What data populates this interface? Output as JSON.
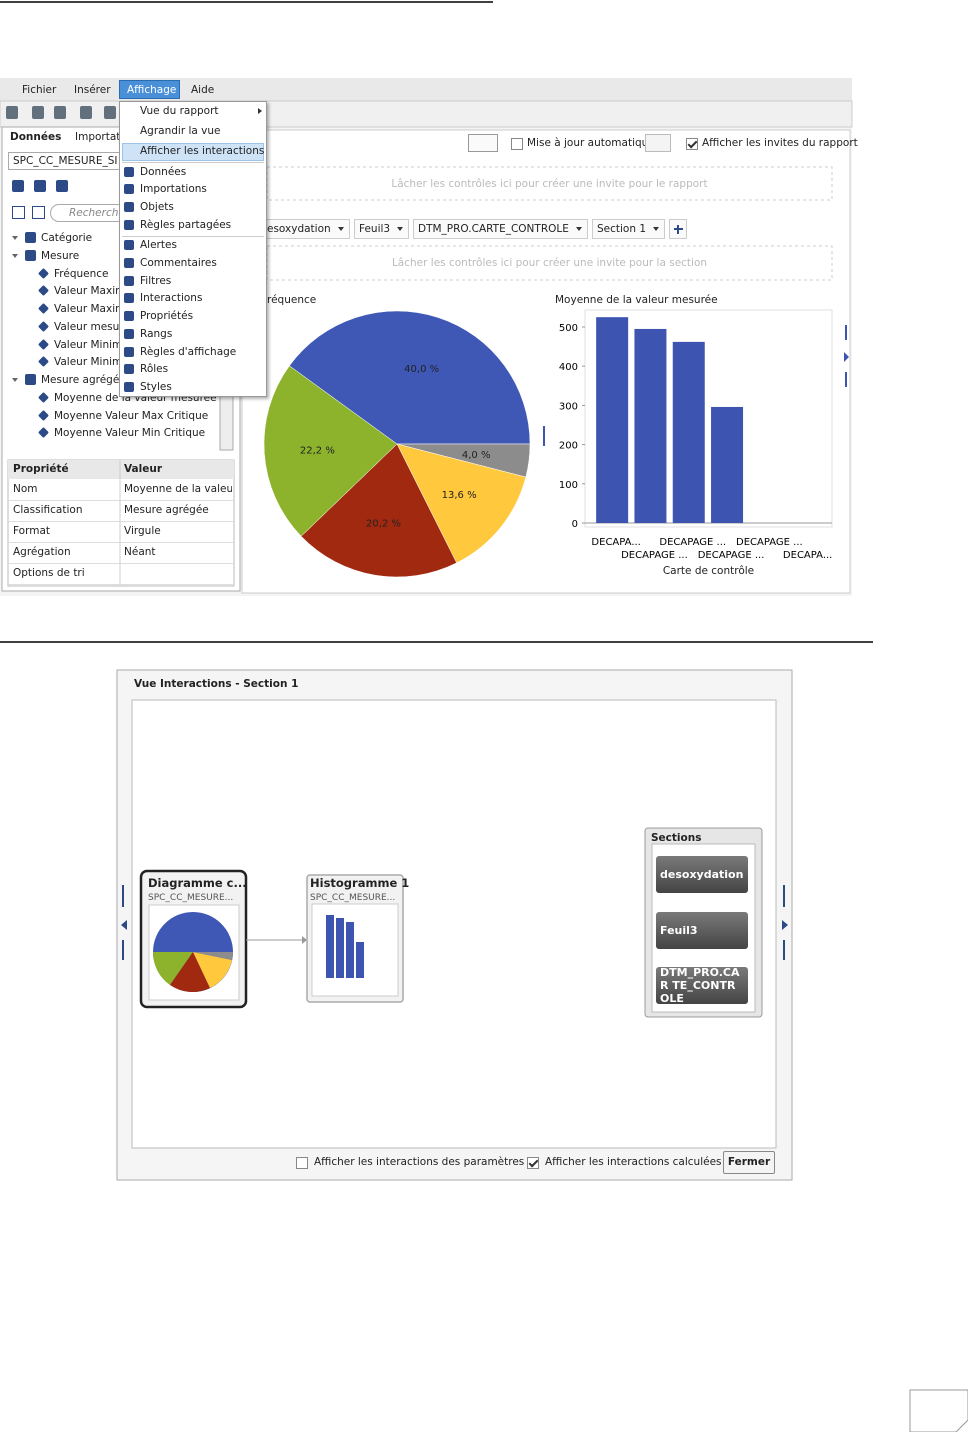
{
  "menubar": [
    "Fichier",
    "Insérer",
    "Affichage",
    "Aide"
  ],
  "view_menu": [
    "Vue du rapport",
    "Agrandir la vue",
    "Afficher les interactions",
    "Données",
    "Importations",
    "Objets",
    "Règles partagées",
    "Alertes",
    "Commentaires",
    "Filtres",
    "Interactions",
    "Propriétés",
    "Rangs",
    "Règles d'affichage",
    "Rôles",
    "Styles"
  ],
  "left_panel": {
    "tabs": [
      "Données",
      "Importatio"
    ],
    "data_source": "SPC_CC_MESURE_SI",
    "search_placeholder": "Recherche",
    "tree": [
      {
        "label": "Catégorie",
        "level": 0
      },
      {
        "label": "Mesure",
        "level": 0
      },
      {
        "label": "Fréquence",
        "level": 1
      },
      {
        "label": "Valeur Maxim",
        "level": 1
      },
      {
        "label": "Valeur Maxim",
        "level": 1
      },
      {
        "label": "Valeur mesur",
        "level": 1
      },
      {
        "label": "Valeur Minim",
        "level": 1
      },
      {
        "label": "Valeur Minim",
        "level": 1
      },
      {
        "label": "Mesure agrégée",
        "level": 0
      },
      {
        "label": "Moyenne de la valeur mesurée",
        "level": 1
      },
      {
        "label": "Moyenne Valeur Max Critique",
        "level": 1
      },
      {
        "label": "Moyenne Valeur Min Critique",
        "level": 1
      }
    ],
    "properties": {
      "header": [
        "Propriété",
        "Valeur"
      ],
      "rows": [
        [
          "Nom",
          "Moyenne de la valeur..."
        ],
        [
          "Classification",
          "Mesure agrégée"
        ],
        [
          "Format",
          "Virgule"
        ],
        [
          "Agrégation",
          "Néant"
        ],
        [
          "Options de tri"
        ]
      ]
    }
  },
  "toolbar": {
    "auto_update": "Mise à jour automatique",
    "show_prompts": "Afficher les invites du rapport"
  },
  "report_drop_zone": "Lâcher les contrôles ici pour créer une invite pour le rapport",
  "section_tabs": [
    "esoxydation",
    "Feuil3",
    "DTM_PRO.CARTE_CONTROLE",
    "Section 1"
  ],
  "section_drop_zone": "Lâcher les contrôles ici pour créer une invite pour la section",
  "chart_data": [
    {
      "type": "pie",
      "title": "réquence",
      "values": [
        40,
        4,
        13.6,
        20.2,
        22.2
      ],
      "value_labels": [
        "40,0 %",
        "4,0 %",
        "13,6 %",
        "20,2 %",
        "22,2 %"
      ],
      "colors": [
        "#3f57b5",
        "#8c8c8c",
        "#ffc83d",
        "#a1290f",
        "#8db32c"
      ]
    },
    {
      "type": "bar",
      "title": "Moyenne de la valeur mesurée",
      "x_label": "Carte de contrôle",
      "categories": [
        "DECAPA...",
        "DECAPAGE ...",
        "DECAPAGE ...",
        "DECAPAGE ...",
        "DECAPAGE ...",
        "DECAPA..."
      ],
      "values": [
        525,
        495,
        462,
        296,
        null,
        null
      ],
      "color": "#3d55b0",
      "ylim": [
        0,
        540
      ],
      "yticks": [
        0,
        100,
        200,
        300,
        400,
        500
      ]
    }
  ],
  "interactions_view": {
    "title": "Vue Interactions - Section 1",
    "nodes": [
      {
        "title": "Diagramme c...",
        "source": "SPC_CC_MESURE..."
      },
      {
        "title": "Histogramme 1",
        "source": "SPC_CC_MESURE..."
      }
    ],
    "sections_panel": {
      "title": "Sections",
      "items": [
        "desoxydation",
        "Feuil3",
        "DTM_PRO.CAR TE_CONTROLE"
      ]
    },
    "options": [
      "Afficher les interactions des paramètres",
      "Afficher les interactions calculées"
    ],
    "close_button": "Fermer"
  }
}
